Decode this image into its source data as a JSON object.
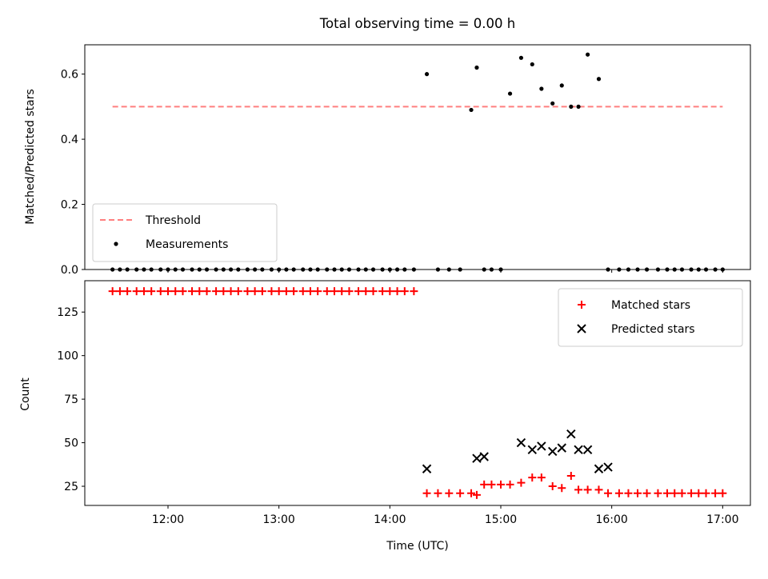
{
  "chart_data": {
    "title": "Total observing time = 0.00 h",
    "xlabel": "Time (UTC)",
    "x_ticks": [
      "12:00",
      "13:00",
      "14:00",
      "15:00",
      "16:00",
      "17:00"
    ],
    "x_range": [
      "11:15",
      "17:15"
    ],
    "panels": [
      {
        "type": "scatter",
        "ylabel": "Matched/Predicted stars",
        "ylim": [
          0,
          0.69
        ],
        "y_ticks": [
          "0.0",
          "0.2",
          "0.4",
          "0.6"
        ],
        "legend_position": "lower-left",
        "series": [
          {
            "name": "Threshold",
            "style": "dashed-line",
            "color": "#ff7f7f",
            "x": [
              "11:30",
              "17:00"
            ],
            "y": [
              0.5,
              0.5
            ]
          },
          {
            "name": "Measurements",
            "style": "dot",
            "color": "#000000",
            "x": [
              "11:30",
              "11:34",
              "11:38",
              "11:43",
              "11:47",
              "11:51",
              "11:56",
              "12:00",
              "12:04",
              "12:08",
              "12:13",
              "12:17",
              "12:21",
              "12:26",
              "12:30",
              "12:34",
              "12:38",
              "12:43",
              "12:47",
              "12:51",
              "12:56",
              "13:00",
              "13:04",
              "13:08",
              "13:13",
              "13:17",
              "13:21",
              "13:26",
              "13:30",
              "13:34",
              "13:38",
              "13:43",
              "13:47",
              "13:51",
              "13:56",
              "14:00",
              "14:04",
              "14:08",
              "14:13",
              "14:20",
              "14:26",
              "14:32",
              "14:38",
              "14:44",
              "14:47",
              "14:51",
              "14:55",
              "15:00",
              "15:05",
              "15:11",
              "15:17",
              "15:22",
              "15:28",
              "15:33",
              "15:38",
              "15:42",
              "15:47",
              "15:53",
              "15:58",
              "16:04",
              "16:09",
              "16:14",
              "16:19",
              "16:25",
              "16:30",
              "16:34",
              "16:38",
              "16:43",
              "16:47",
              "16:51",
              "16:56",
              "17:00"
            ],
            "y": [
              0,
              0,
              0,
              0,
              0,
              0,
              0,
              0,
              0,
              0,
              0,
              0,
              0,
              0,
              0,
              0,
              0,
              0,
              0,
              0,
              0,
              0,
              0,
              0,
              0,
              0,
              0,
              0,
              0,
              0,
              0,
              0,
              0,
              0,
              0,
              0,
              0,
              0,
              0,
              0.6,
              0,
              0,
              0,
              0.49,
              0.62,
              0,
              0,
              0,
              0.54,
              0.65,
              0.63,
              0.555,
              0.51,
              0.565,
              0.5,
              0.5,
              0.66,
              0.585,
              0,
              0,
              0,
              0,
              0,
              0,
              0,
              0,
              0,
              0,
              0,
              0,
              0,
              0
            ]
          }
        ]
      },
      {
        "type": "scatter",
        "ylabel": "Count",
        "ylim": [
          14,
          143
        ],
        "y_ticks": [
          "25",
          "50",
          "75",
          "100",
          "125"
        ],
        "legend_position": "upper-right",
        "series": [
          {
            "name": "Matched stars",
            "style": "plus",
            "color": "#ff0000",
            "x": [
              "11:30",
              "11:34",
              "11:38",
              "11:43",
              "11:47",
              "11:51",
              "11:56",
              "12:00",
              "12:04",
              "12:08",
              "12:13",
              "12:17",
              "12:21",
              "12:26",
              "12:30",
              "12:34",
              "12:38",
              "12:43",
              "12:47",
              "12:51",
              "12:56",
              "13:00",
              "13:04",
              "13:08",
              "13:13",
              "13:17",
              "13:21",
              "13:26",
              "13:30",
              "13:34",
              "13:38",
              "13:43",
              "13:47",
              "13:51",
              "13:56",
              "14:00",
              "14:04",
              "14:08",
              "14:13",
              "14:20",
              "14:26",
              "14:32",
              "14:38",
              "14:44",
              "14:47",
              "14:51",
              "14:55",
              "15:00",
              "15:05",
              "15:11",
              "15:17",
              "15:22",
              "15:28",
              "15:33",
              "15:38",
              "15:42",
              "15:47",
              "15:53",
              "15:58",
              "16:04",
              "16:09",
              "16:14",
              "16:19",
              "16:25",
              "16:30",
              "16:34",
              "16:38",
              "16:43",
              "16:47",
              "16:51",
              "16:56",
              "17:00"
            ],
            "y": [
              137,
              137,
              137,
              137,
              137,
              137,
              137,
              137,
              137,
              137,
              137,
              137,
              137,
              137,
              137,
              137,
              137,
              137,
              137,
              137,
              137,
              137,
              137,
              137,
              137,
              137,
              137,
              137,
              137,
              137,
              137,
              137,
              137,
              137,
              137,
              137,
              137,
              137,
              137,
              21,
              21,
              21,
              21,
              21,
              20,
              26,
              26,
              26,
              26,
              27,
              30,
              30,
              25,
              24,
              31,
              23,
              23,
              23,
              21,
              21,
              21,
              21,
              21,
              21,
              21,
              21,
              21,
              21,
              21,
              21,
              21,
              21
            ]
          },
          {
            "name": "Predicted stars",
            "style": "x",
            "color": "#000000",
            "x": [
              "14:20",
              "14:47",
              "14:51",
              "15:11",
              "15:17",
              "15:22",
              "15:28",
              "15:33",
              "15:38",
              "15:42",
              "15:47",
              "15:53",
              "15:58"
            ],
            "y": [
              35,
              41,
              42,
              50,
              46,
              48,
              45,
              47,
              55,
              46,
              46,
              35,
              36
            ]
          }
        ]
      }
    ]
  }
}
